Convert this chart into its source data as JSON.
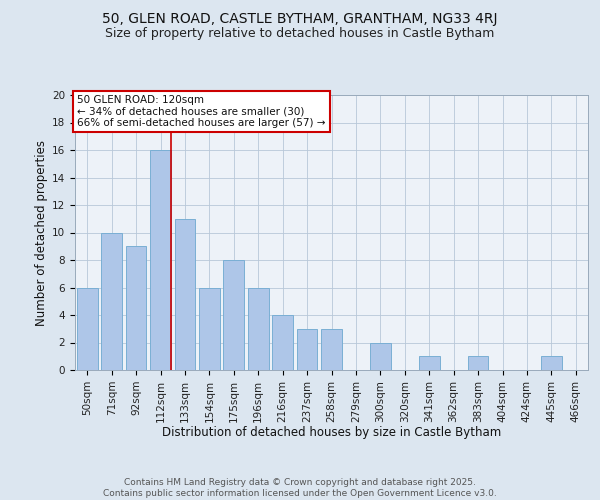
{
  "title1": "50, GLEN ROAD, CASTLE BYTHAM, GRANTHAM, NG33 4RJ",
  "title2": "Size of property relative to detached houses in Castle Bytham",
  "xlabel": "Distribution of detached houses by size in Castle Bytham",
  "ylabel": "Number of detached properties",
  "categories": [
    "50sqm",
    "71sqm",
    "92sqm",
    "112sqm",
    "133sqm",
    "154sqm",
    "175sqm",
    "196sqm",
    "216sqm",
    "237sqm",
    "258sqm",
    "279sqm",
    "300sqm",
    "320sqm",
    "341sqm",
    "362sqm",
    "383sqm",
    "404sqm",
    "424sqm",
    "445sqm",
    "466sqm"
  ],
  "values": [
    6,
    10,
    9,
    16,
    11,
    6,
    8,
    6,
    4,
    3,
    3,
    0,
    2,
    0,
    1,
    0,
    1,
    0,
    0,
    1,
    0
  ],
  "bar_color": "#aec6e8",
  "bar_edge_color": "#7aafd4",
  "red_line_x": 3,
  "annotation_text": "50 GLEN ROAD: 120sqm\n← 34% of detached houses are smaller (30)\n66% of semi-detached houses are larger (57) →",
  "annotation_box_color": "#ffffff",
  "annotation_box_edge": "#cc0000",
  "ylim": [
    0,
    20
  ],
  "yticks": [
    0,
    2,
    4,
    6,
    8,
    10,
    12,
    14,
    16,
    18,
    20
  ],
  "bg_color": "#dce6f0",
  "plot_bg_color": "#edf2f8",
  "footer_line1": "Contains HM Land Registry data © Crown copyright and database right 2025.",
  "footer_line2": "Contains public sector information licensed under the Open Government Licence v3.0.",
  "title1_fontsize": 10,
  "title2_fontsize": 9,
  "xlabel_fontsize": 8.5,
  "ylabel_fontsize": 8.5,
  "tick_fontsize": 7.5,
  "footer_fontsize": 6.5,
  "annotation_fontsize": 7.5
}
